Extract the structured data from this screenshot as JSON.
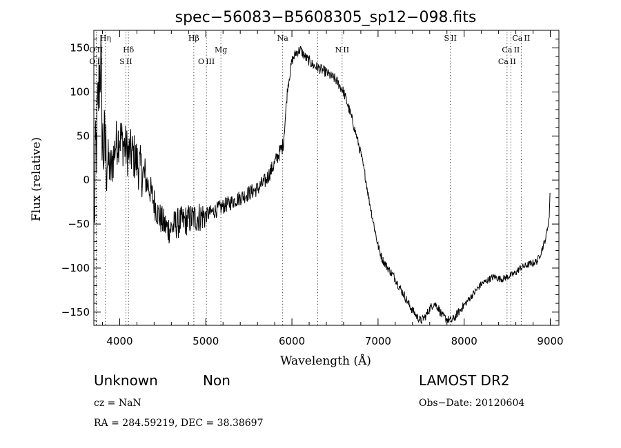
{
  "chart_data": {
    "type": "line",
    "title": "spec−56083−B5608305_sp12−098.fits",
    "xlabel": "Wavelength (Å)",
    "ylabel": "Flux (relative)",
    "xlim": [
      3700,
      9100
    ],
    "ylim": [
      -165,
      170
    ],
    "x_ticks": [
      4000,
      5000,
      6000,
      7000,
      8000,
      9000
    ],
    "y_ticks": [
      -150,
      -100,
      -50,
      0,
      50,
      100,
      150
    ],
    "y_tick_labels": [
      "−150",
      "−100",
      "−50",
      "0",
      "50",
      "100",
      "150"
    ],
    "grid": false,
    "legend": "none",
    "line_color": "#000000",
    "spectrum_anchors": [
      [
        3700,
        -70
      ],
      [
        3720,
        20
      ],
      [
        3740,
        60
      ],
      [
        3760,
        110
      ],
      [
        3780,
        140
      ],
      [
        3800,
        40
      ],
      [
        3850,
        25
      ],
      [
        3900,
        10
      ],
      [
        3950,
        40
      ],
      [
        4000,
        50
      ],
      [
        4050,
        40
      ],
      [
        4100,
        30
      ],
      [
        4150,
        30
      ],
      [
        4200,
        20
      ],
      [
        4250,
        10
      ],
      [
        4300,
        0
      ],
      [
        4350,
        -10
      ],
      [
        4400,
        -25
      ],
      [
        4450,
        -40
      ],
      [
        4500,
        -48
      ],
      [
        4550,
        -55
      ],
      [
        4600,
        -55
      ],
      [
        4650,
        -50
      ],
      [
        4700,
        -48
      ],
      [
        4800,
        -45
      ],
      [
        4900,
        -42
      ],
      [
        5000,
        -40
      ],
      [
        5100,
        -35
      ],
      [
        5200,
        -30
      ],
      [
        5300,
        -25
      ],
      [
        5400,
        -20
      ],
      [
        5500,
        -15
      ],
      [
        5600,
        -10
      ],
      [
        5700,
        0
      ],
      [
        5780,
        15
      ],
      [
        5850,
        30
      ],
      [
        5900,
        40
      ],
      [
        5950,
        105
      ],
      [
        6000,
        135
      ],
      [
        6050,
        145
      ],
      [
        6100,
        148
      ],
      [
        6150,
        140
      ],
      [
        6200,
        135
      ],
      [
        6250,
        130
      ],
      [
        6300,
        128
      ],
      [
        6350,
        125
      ],
      [
        6400,
        122
      ],
      [
        6450,
        118
      ],
      [
        6500,
        115
      ],
      [
        6550,
        108
      ],
      [
        6600,
        100
      ],
      [
        6650,
        85
      ],
      [
        6700,
        68
      ],
      [
        6750,
        50
      ],
      [
        6800,
        30
      ],
      [
        6850,
        5
      ],
      [
        6900,
        -25
      ],
      [
        6950,
        -50
      ],
      [
        7000,
        -75
      ],
      [
        7050,
        -90
      ],
      [
        7100,
        -98
      ],
      [
        7150,
        -105
      ],
      [
        7200,
        -112
      ],
      [
        7250,
        -122
      ],
      [
        7300,
        -130
      ],
      [
        7350,
        -140
      ],
      [
        7400,
        -148
      ],
      [
        7450,
        -155
      ],
      [
        7500,
        -160
      ],
      [
        7550,
        -155
      ],
      [
        7600,
        -146
      ],
      [
        7650,
        -140
      ],
      [
        7700,
        -145
      ],
      [
        7750,
        -155
      ],
      [
        7800,
        -158
      ],
      [
        7850,
        -160
      ],
      [
        7900,
        -155
      ],
      [
        7950,
        -148
      ],
      [
        8000,
        -142
      ],
      [
        8050,
        -136
      ],
      [
        8100,
        -130
      ],
      [
        8150,
        -124
      ],
      [
        8200,
        -118
      ],
      [
        8250,
        -115
      ],
      [
        8300,
        -112
      ],
      [
        8350,
        -110
      ],
      [
        8400,
        -112
      ],
      [
        8450,
        -112
      ],
      [
        8500,
        -110
      ],
      [
        8550,
        -108
      ],
      [
        8600,
        -105
      ],
      [
        8650,
        -100
      ],
      [
        8700,
        -98
      ],
      [
        8750,
        -96
      ],
      [
        8800,
        -94
      ],
      [
        8850,
        -92
      ],
      [
        8900,
        -80
      ],
      [
        8950,
        -65
      ],
      [
        8990,
        -40
      ],
      [
        9000,
        0
      ]
    ],
    "spectral_lines": [
      {
        "label": "O II",
        "wave": 3727,
        "row": 2
      },
      {
        "label": "O II",
        "wave": 3727,
        "row": 3
      },
      {
        "label": "Hη",
        "wave": 3835,
        "row": 1
      },
      {
        "label": "Hδ",
        "wave": 4102,
        "row": 2
      },
      {
        "label": "S II",
        "wave": 4072,
        "row": 3
      },
      {
        "label": "Hβ",
        "wave": 4861,
        "row": 1
      },
      {
        "label": "O III",
        "wave": 5007,
        "row": 3
      },
      {
        "label": "Mg",
        "wave": 5175,
        "row": 2
      },
      {
        "label": "Na",
        "wave": 5893,
        "row": 1
      },
      {
        "label": "N II",
        "wave": 6583,
        "row": 2
      },
      {
        "label": "S II",
        "wave": 7840,
        "row": 1
      },
      {
        "label": "Ca II",
        "wave": 8662,
        "row": 1
      },
      {
        "label": "Ca II",
        "wave": 8542,
        "row": 2
      },
      {
        "label": "Ca II",
        "wave": 8498,
        "row": 3
      }
    ],
    "extra_dotted_lines": [
      6300
    ]
  },
  "info": {
    "object_class": "Unknown",
    "subclass": "Non",
    "survey": "LAMOST DR2",
    "cz": "cz = NaN",
    "obs_date": "Obs−Date: 20120604",
    "coords": "RA = 284.59219, DEC =  38.38697"
  }
}
